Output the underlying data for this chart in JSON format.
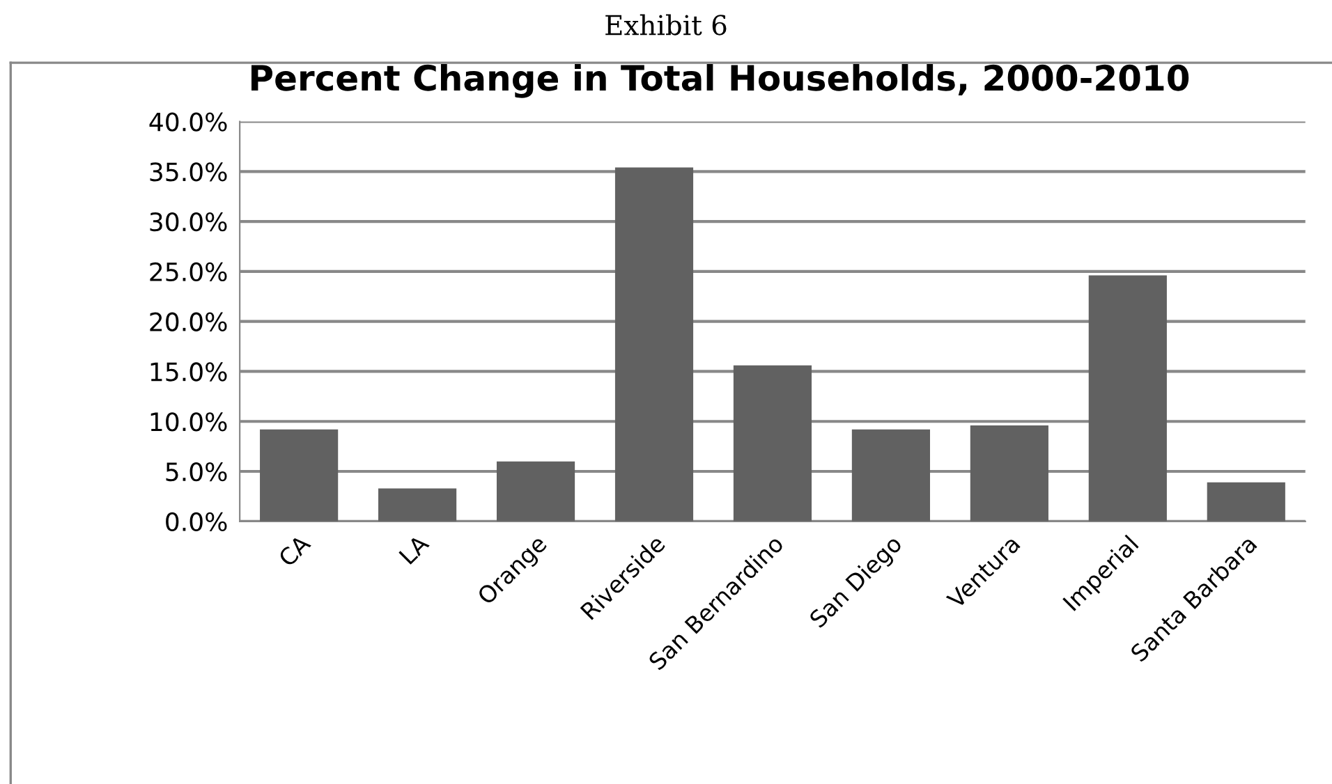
{
  "chart_data": {
    "type": "bar",
    "title": "Percent Change in Total Households, 2000-2010",
    "annotations": [
      "Exhibit 6"
    ],
    "categories": [
      "CA",
      "LA",
      "Orange",
      "Riverside",
      "San Bernardino",
      "San Diego",
      "Ventura",
      "Imperial",
      "Santa Barbara"
    ],
    "values": [
      9.2,
      3.3,
      6.0,
      35.4,
      15.6,
      9.2,
      9.6,
      24.6,
      3.9
    ],
    "color": "#616161",
    "ylim": [
      0,
      40
    ],
    "yticks": [
      {
        "value": 0,
        "label": "0.0%"
      },
      {
        "value": 5,
        "label": "5.0%"
      },
      {
        "value": 10,
        "label": "10.0%"
      },
      {
        "value": 15,
        "label": "15.0%"
      },
      {
        "value": 20,
        "label": "20.0%"
      },
      {
        "value": 25,
        "label": "25.0%"
      },
      {
        "value": 30,
        "label": "30.0%"
      },
      {
        "value": 35,
        "label": "35.0%"
      },
      {
        "value": 40,
        "label": "40.0%"
      }
    ],
    "grid": "y"
  }
}
